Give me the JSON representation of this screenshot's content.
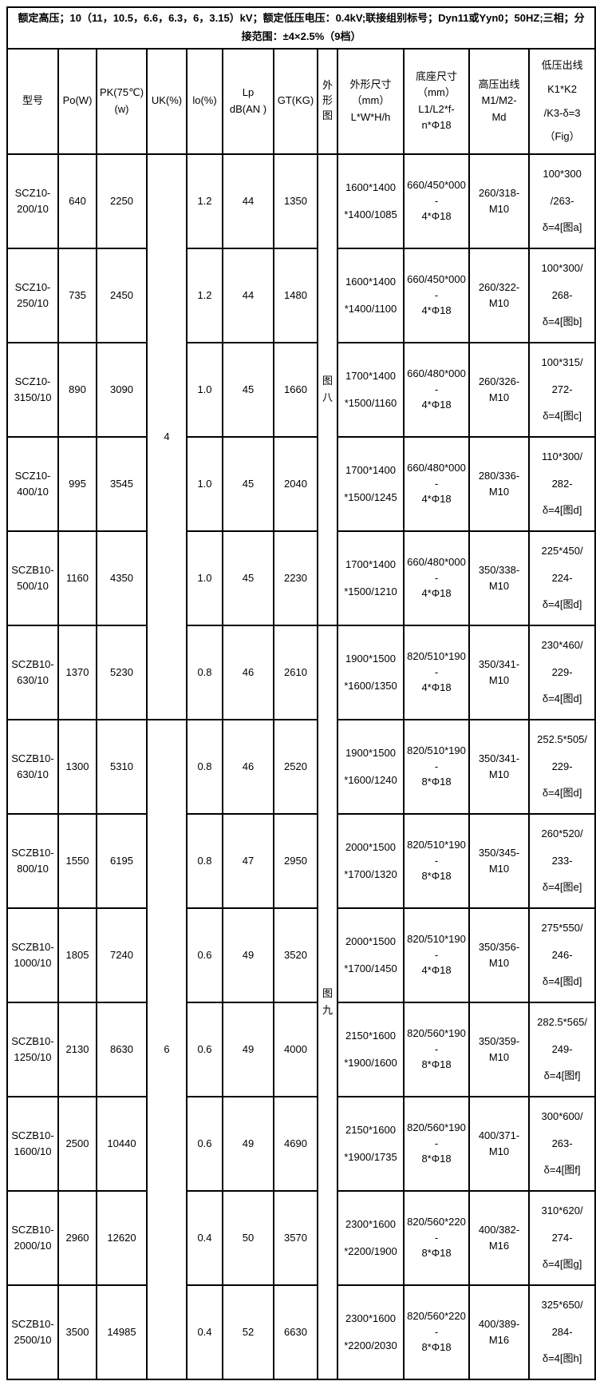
{
  "table": {
    "info": "额定高压；10（11，10.5，6.6，6.3，6，3.15）kV；额定低压电压：0.4kV;联接组别标号；Dyn11或Yyn0；50HZ;三相；分接范围：±4×2.5%（9档）",
    "headers": [
      "型号",
      "Po(W)",
      "PK(75℃)\n(w)",
      "UK(%)",
      "lo(%)",
      "Lp\ndB(AN )",
      "GT(KG)",
      "外\n形\n图",
      "外形尺寸\n（mm）\nL*W*H/h",
      "底座尺寸\n（mm）\nL1/L2*f-\nn*Φ18",
      "高压出线\nM1/M2-\nMd",
      "低压出线\nK1*K2\n/K3-δ=3\n（Fig）"
    ],
    "rows": [
      [
        "SCZ10-\n200/10",
        "640",
        "2250",
        {
          "t": "4",
          "rs": 6
        },
        "1.2",
        "44",
        "1350",
        {
          "t": "图\n八",
          "rs": 5
        },
        "1600*1400\n*1400/1085",
        "660/450*000-\n4*Φ18",
        "260/318-\nM10",
        "100*300\n/263-\nδ=4[图a]"
      ],
      [
        "SCZ10-\n250/10",
        "735",
        "2450",
        null,
        "1.2",
        "44",
        "1480",
        null,
        "1600*1400\n*1400/1100",
        "660/450*000-\n4*Φ18",
        "260/322-\nM10",
        "100*300/\n268-\nδ=4[图b]"
      ],
      [
        "SCZ10-\n3150/10",
        "890",
        "3090",
        null,
        "1.0",
        "45",
        "1660",
        null,
        "1700*1400\n*1500/1160",
        "660/480*000-\n4*Φ18",
        "260/326-\nM10",
        "100*315/\n272-\nδ=4[图c]"
      ],
      [
        "SCZ10-\n400/10",
        "995",
        "3545",
        null,
        "1.0",
        "45",
        "2040",
        null,
        "1700*1400\n*1500/1245",
        "660/480*000-\n4*Φ18",
        "280/336-\nM10",
        "110*300/\n282-\nδ=4[图d]"
      ],
      [
        "SCZB10-\n500/10",
        "1160",
        "4350",
        null,
        "1.0",
        "45",
        "2230",
        null,
        "1700*1400\n*1500/1210",
        "660/480*000-\n4*Φ18",
        "350/338-\nM10",
        "225*450/\n224-\nδ=4[图d]"
      ],
      [
        "SCZB10-\n630/10",
        "1370",
        "5230",
        null,
        "0.8",
        "46",
        "2610",
        {
          "t": "图\n九",
          "rs": 8
        },
        "1900*1500\n*1600/1350",
        "820/510*190-\n4*Φ18",
        "350/341-\nM10",
        "230*460/\n229-\nδ=4[图d]"
      ],
      [
        "SCZB10-\n630/10",
        "1300",
        "5310",
        {
          "t": "6",
          "rs": 7
        },
        "0.8",
        "46",
        "2520",
        null,
        "1900*1500\n*1600/1240",
        "820/510*190-\n8*Φ18",
        "350/341-\nM10",
        "252.5*505/\n229-\nδ=4[图d]"
      ],
      [
        "SCZB10-\n800/10",
        "1550",
        "6195",
        null,
        "0.8",
        "47",
        "2950",
        null,
        "2000*1500\n*1700/1320",
        "820/510*190-\n8*Φ18",
        "350/345-\nM10",
        "260*520/\n233-\nδ=4[图e]"
      ],
      [
        "SCZB10-\n1000/10",
        "1805",
        "7240",
        null,
        "0.6",
        "49",
        "3520",
        null,
        "2000*1500\n*1700/1450",
        "820/510*190-\n4*Φ18",
        "350/356-\nM10",
        "275*550/\n246-\nδ=4[图d]"
      ],
      [
        "SCZB10-\n1250/10",
        "2130",
        "8630",
        null,
        "0.6",
        "49",
        "4000",
        null,
        "2150*1600\n*1900/1600",
        "820/560*190-\n8*Φ18",
        "350/359-\nM10",
        "282.5*565/\n249-\nδ=4[图f]"
      ],
      [
        "SCZB10-\n1600/10",
        "2500",
        "10440",
        null,
        "0.6",
        "49",
        "4690",
        null,
        "2150*1600\n*1900/1735",
        "820/560*190-\n8*Φ18",
        "400/371-\nM10",
        "300*600/\n263-\nδ=4[图f]"
      ],
      [
        "SCZB10-\n2000/10",
        "2960",
        "12620",
        null,
        "0.4",
        "50",
        "3570",
        null,
        "2300*1600\n*2200/1900",
        "820/560*220-\n8*Φ18",
        "400/382-\nM16",
        "310*620/\n274-\nδ=4[图g]"
      ],
      [
        "SCZB10-\n2500/10",
        "3500",
        "14985",
        null,
        "0.4",
        "52",
        "6630",
        null,
        "2300*1600\n*2200/2030",
        "820/560*220-\n8*Φ18",
        "400/389-\nM16",
        "325*650/\n284-\nδ=4[图h]"
      ]
    ]
  }
}
